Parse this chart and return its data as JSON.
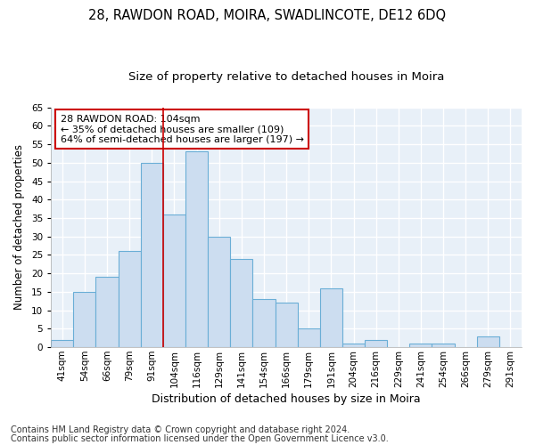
{
  "title1": "28, RAWDON ROAD, MOIRA, SWADLINCOTE, DE12 6DQ",
  "title2": "Size of property relative to detached houses in Moira",
  "xlabel": "Distribution of detached houses by size in Moira",
  "ylabel": "Number of detached properties",
  "footnote1": "Contains HM Land Registry data © Crown copyright and database right 2024.",
  "footnote2": "Contains public sector information licensed under the Open Government Licence v3.0.",
  "annotation_line1": "28 RAWDON ROAD: 104sqm",
  "annotation_line2": "← 35% of detached houses are smaller (109)",
  "annotation_line3": "64% of semi-detached houses are larger (197) →",
  "categories": [
    "41sqm",
    "54sqm",
    "66sqm",
    "79sqm",
    "91sqm",
    "104sqm",
    "116sqm",
    "129sqm",
    "141sqm",
    "154sqm",
    "166sqm",
    "179sqm",
    "191sqm",
    "204sqm",
    "216sqm",
    "229sqm",
    "241sqm",
    "254sqm",
    "266sqm",
    "279sqm",
    "291sqm"
  ],
  "values": [
    2,
    15,
    19,
    26,
    50,
    36,
    53,
    30,
    24,
    13,
    12,
    5,
    16,
    1,
    2,
    0,
    1,
    1,
    0,
    3,
    0
  ],
  "bar_color": "#ccddf0",
  "bar_edge_color": "#6aaed6",
  "vline_color": "#cc0000",
  "vline_bar_index": 5,
  "annotation_box_facecolor": "#ffffff",
  "annotation_box_edgecolor": "#cc0000",
  "ylim": [
    0,
    65
  ],
  "bg_color": "#e8f0f8",
  "grid_color": "#ffffff",
  "fig_bg_color": "#ffffff",
  "title1_fontsize": 10.5,
  "title2_fontsize": 9.5,
  "xlabel_fontsize": 9,
  "ylabel_fontsize": 8.5,
  "tick_fontsize": 7.5,
  "annotation_fontsize": 8,
  "footnote_fontsize": 7
}
